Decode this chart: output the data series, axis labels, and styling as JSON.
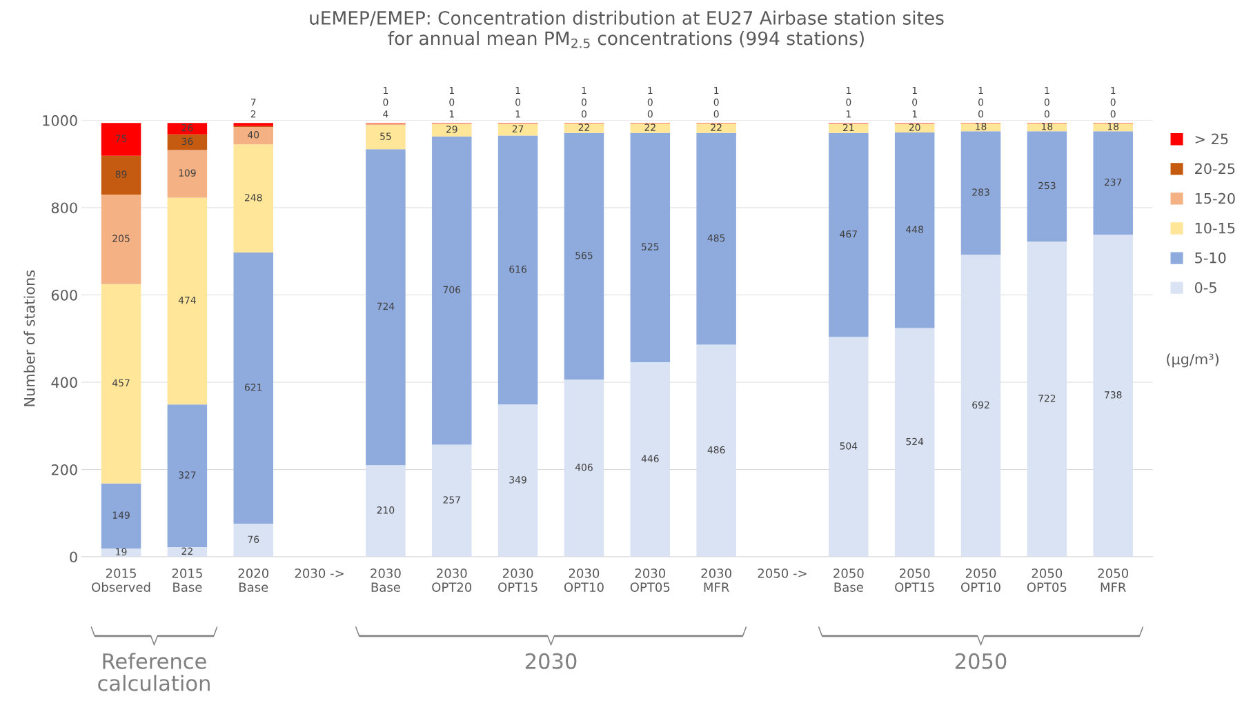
{
  "chart_data": {
    "type": "bar",
    "stacked": true,
    "title": "uEMEP/EMEP: Concentration distribution at EU27 Airbase station sites\nfor annual mean PM$_{2.5}$ concentrations (994 stations)",
    "ylabel": "Number of stations",
    "categories": [
      "2015\nObserved",
      "2015\nBase",
      "2020\nBase",
      "2030 ->",
      "2030\nBase",
      "2030\nOPT20",
      "2030\nOPT15",
      "2030\nOPT10",
      "2030\nOPT05",
      "2030\nMFR",
      "2050 ->",
      "2050\nBase",
      "2050\nOPT15",
      "2050\nOPT10",
      "2050\nOPT05",
      "2050\nMFR"
    ],
    "series": [
      {
        "name": "0-5",
        "color": "#dae3f3",
        "values": [
          19,
          22,
          76,
          null,
          210,
          257,
          349,
          406,
          446,
          486,
          null,
          504,
          524,
          692,
          722,
          738
        ]
      },
      {
        "name": "5-10",
        "color": "#8faadc",
        "values": [
          149,
          327,
          621,
          null,
          724,
          706,
          616,
          565,
          525,
          485,
          null,
          467,
          448,
          283,
          253,
          237
        ]
      },
      {
        "name": "10-15",
        "color": "#ffe699",
        "values": [
          457,
          474,
          248,
          null,
          55,
          29,
          27,
          22,
          22,
          22,
          null,
          21,
          20,
          18,
          18,
          18
        ]
      },
      {
        "name": "15-20",
        "color": "#f4b183",
        "values": [
          205,
          109,
          40,
          null,
          4,
          1,
          1,
          0,
          0,
          0,
          null,
          1,
          1,
          0,
          0,
          0
        ]
      },
      {
        "name": "20-25",
        "color": "#c55a11",
        "values": [
          89,
          36,
          2,
          null,
          0,
          0,
          0,
          0,
          0,
          0,
          null,
          0,
          0,
          0,
          0,
          0
        ]
      },
      {
        "name": "> 25",
        "color": "#ff0000",
        "values": [
          75,
          26,
          7,
          null,
          1,
          1,
          1,
          1,
          1,
          1,
          null,
          1,
          1,
          1,
          1,
          1
        ]
      }
    ],
    "ylim": [
      0,
      1000
    ],
    "yticks": [
      0,
      200,
      400,
      600,
      800,
      1000
    ],
    "grid": "y",
    "legend": "right",
    "data_labels": true,
    "annotations": [
      "(µg/m³)",
      "Reference\ncalculation",
      "2030",
      "2050"
    ]
  }
}
